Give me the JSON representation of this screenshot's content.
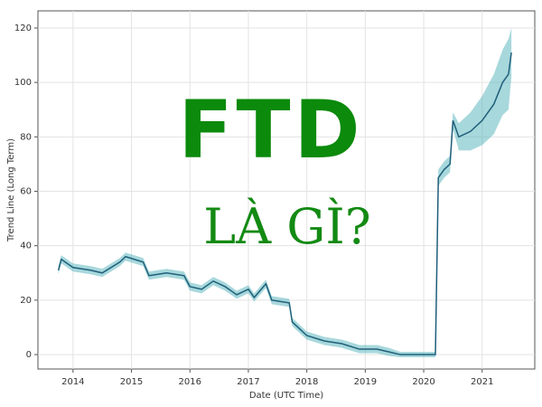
{
  "chart_data": {
    "type": "line",
    "y_label": "Trend Line (Long Term)",
    "x_label": "Date (UTC Time)",
    "annotations": [
      "FTD",
      "LÀ GÌ?"
    ],
    "x": [
      2013.75,
      2013.8,
      2014.0,
      2014.3,
      2014.5,
      2014.8,
      2014.9,
      2015.2,
      2015.3,
      2015.6,
      2015.9,
      2016.0,
      2016.2,
      2016.4,
      2016.6,
      2016.8,
      2017.0,
      2017.1,
      2017.3,
      2017.4,
      2017.7,
      2017.75,
      2017.9,
      2018.0,
      2018.3,
      2018.6,
      2018.9,
      2019.2,
      2019.4,
      2019.6,
      2020.2,
      2020.25,
      2020.35,
      2020.45,
      2020.5,
      2020.6,
      2020.8,
      2021.0,
      2021.2,
      2021.35,
      2021.45,
      2021.5
    ],
    "values": [
      31,
      35,
      32,
      31,
      30,
      34,
      36,
      34,
      29,
      30,
      29,
      25,
      24,
      27,
      25,
      22,
      24,
      21,
      26,
      20,
      19,
      12,
      9,
      7,
      5,
      4,
      2,
      2,
      1,
      0,
      0,
      65,
      68,
      70,
      86,
      80,
      82,
      86,
      92,
      100,
      103,
      111
    ],
    "lower": [
      29.5,
      33.5,
      30.5,
      29.5,
      28.5,
      32.5,
      34.5,
      32.5,
      27.5,
      28.5,
      27.5,
      23.5,
      22.5,
      25.5,
      23.5,
      20.5,
      22.5,
      19.5,
      24.5,
      18.5,
      17.5,
      10.5,
      7.5,
      5.5,
      3.5,
      2.5,
      0.5,
      0.5,
      -0.5,
      -1,
      -1,
      62,
      65,
      67,
      83,
      75,
      75,
      77,
      81,
      88,
      90,
      102
    ],
    "upper": [
      32.5,
      36.5,
      33.5,
      32.5,
      31.5,
      35.5,
      37.5,
      35.5,
      30.5,
      31.5,
      30.5,
      26.5,
      25.5,
      28.5,
      26.5,
      23.5,
      25.5,
      22.5,
      27.5,
      21.5,
      20.5,
      13.5,
      10.5,
      8.5,
      6.5,
      5.5,
      3.5,
      3.5,
      2.5,
      1,
      1,
      68,
      71,
      73,
      89,
      85,
      89,
      95,
      103,
      112,
      116,
      120
    ],
    "color": "#1f5f7a",
    "band_color": "#5fb8c0",
    "xlim": [
      2013.4,
      2021.9
    ],
    "xticks": [
      2014,
      2015,
      2016,
      2017,
      2018,
      2019,
      2020,
      2021
    ],
    "ylim": [
      -5.3,
      126.3
    ],
    "yticks": [
      0,
      20,
      40,
      60,
      80,
      100,
      120
    ],
    "grid": true
  }
}
